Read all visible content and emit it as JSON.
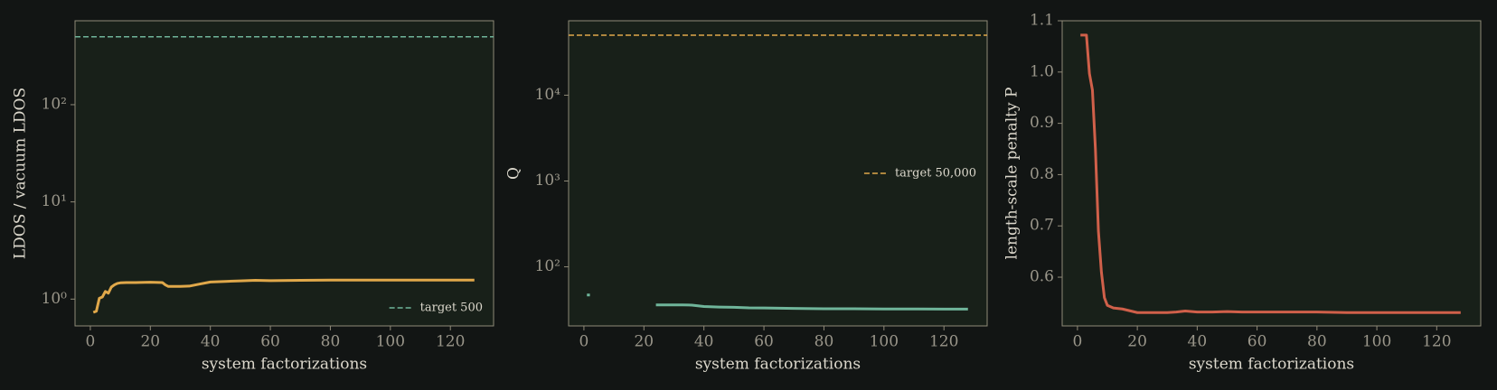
{
  "chart_data": [
    {
      "type": "line",
      "xlabel": "system factorizations",
      "ylabel": "LDOS / vacuum LDOS",
      "yscale": "log",
      "x": [
        1,
        2,
        3,
        4,
        5,
        6,
        7,
        8,
        9,
        10,
        12,
        15,
        20,
        24,
        25,
        26,
        30,
        33,
        36,
        40,
        45,
        50,
        55,
        60,
        70,
        80,
        90,
        100,
        110,
        120,
        128
      ],
      "xlim": [
        -5.1,
        134.4
      ],
      "xticks": [
        0,
        20,
        40,
        60,
        80,
        100,
        120
      ],
      "ylim": [
        0.53,
        730
      ],
      "yticks": [
        {
          "value": 1,
          "label": "10⁰"
        },
        {
          "value": 10,
          "label": "10¹"
        },
        {
          "value": 100,
          "label": "10²"
        }
      ],
      "series": [
        {
          "color": "#e0a84a",
          "values": [
            0.73,
            0.75,
            1.02,
            1.05,
            1.2,
            1.15,
            1.33,
            1.4,
            1.45,
            1.47,
            1.48,
            1.48,
            1.49,
            1.48,
            1.4,
            1.35,
            1.35,
            1.36,
            1.42,
            1.5,
            1.52,
            1.54,
            1.56,
            1.55,
            1.56,
            1.57,
            1.57,
            1.57,
            1.57,
            1.57,
            1.57
          ]
        }
      ],
      "hlines": [
        {
          "label": "target 500",
          "value": 500,
          "color": "#6fb59a"
        }
      ],
      "legend": "lower right"
    },
    {
      "type": "line",
      "xlabel": "system factorizations",
      "ylabel": "Q",
      "yscale": "log",
      "x": [
        1,
        2,
        3,
        4,
        5,
        6,
        7,
        8,
        9,
        10,
        12,
        15,
        20,
        24,
        25,
        26,
        30,
        33,
        36,
        40,
        45,
        50,
        55,
        60,
        70,
        80,
        90,
        100,
        110,
        120,
        128
      ],
      "xlim": [
        -5.1,
        134.4
      ],
      "xticks": [
        0,
        20,
        40,
        60,
        80,
        100,
        120
      ],
      "ylim": [
        20.5,
        73600
      ],
      "yticks": [
        {
          "value": 100,
          "label": "10²"
        },
        {
          "value": 1000,
          "label": "10³"
        },
        {
          "value": 10000,
          "label": "10⁴"
        }
      ],
      "series": [
        {
          "color": "#6fb59a",
          "values": [
            47,
            47,
            null,
            null,
            null,
            null,
            null,
            null,
            null,
            null,
            null,
            null,
            null,
            36,
            36,
            36,
            36,
            36,
            35.8,
            34.5,
            34,
            33.8,
            33.3,
            33.2,
            32.8,
            32.5,
            32.5,
            32.3,
            32.3,
            32.2,
            32.2
          ]
        }
      ],
      "hlines": [
        {
          "label": "target 50,000",
          "value": 50000,
          "color": "#e0a84a"
        }
      ],
      "legend": "center right"
    },
    {
      "type": "line",
      "xlabel": "system factorizations",
      "ylabel": "length-scale penalty P",
      "yscale": "linear",
      "x": [
        1,
        2,
        3,
        4,
        5,
        6,
        7,
        8,
        9,
        10,
        12,
        15,
        20,
        24,
        25,
        26,
        30,
        33,
        36,
        40,
        45,
        50,
        55,
        60,
        70,
        80,
        90,
        100,
        110,
        120,
        128
      ],
      "xlim": [
        -5.1,
        134.7
      ],
      "xticks": [
        0,
        20,
        40,
        60,
        80,
        100,
        120
      ],
      "ylim": [
        0.505,
        1.1
      ],
      "yticks": [
        0.6,
        0.7,
        0.8,
        0.9,
        {
          "value": 1,
          "label": "1.0"
        },
        1.1
      ],
      "series": [
        {
          "color": "#d0604a",
          "values": [
            1.072,
            1.072,
            1.072,
            0.997,
            0.965,
            0.85,
            0.69,
            0.61,
            0.56,
            0.545,
            0.54,
            0.538,
            0.531,
            0.531,
            0.531,
            0.531,
            0.531,
            0.532,
            0.534,
            0.532,
            0.532,
            0.533,
            0.532,
            0.532,
            0.532,
            0.532,
            0.531,
            0.531,
            0.531,
            0.531,
            0.531
          ]
        }
      ]
    }
  ]
}
